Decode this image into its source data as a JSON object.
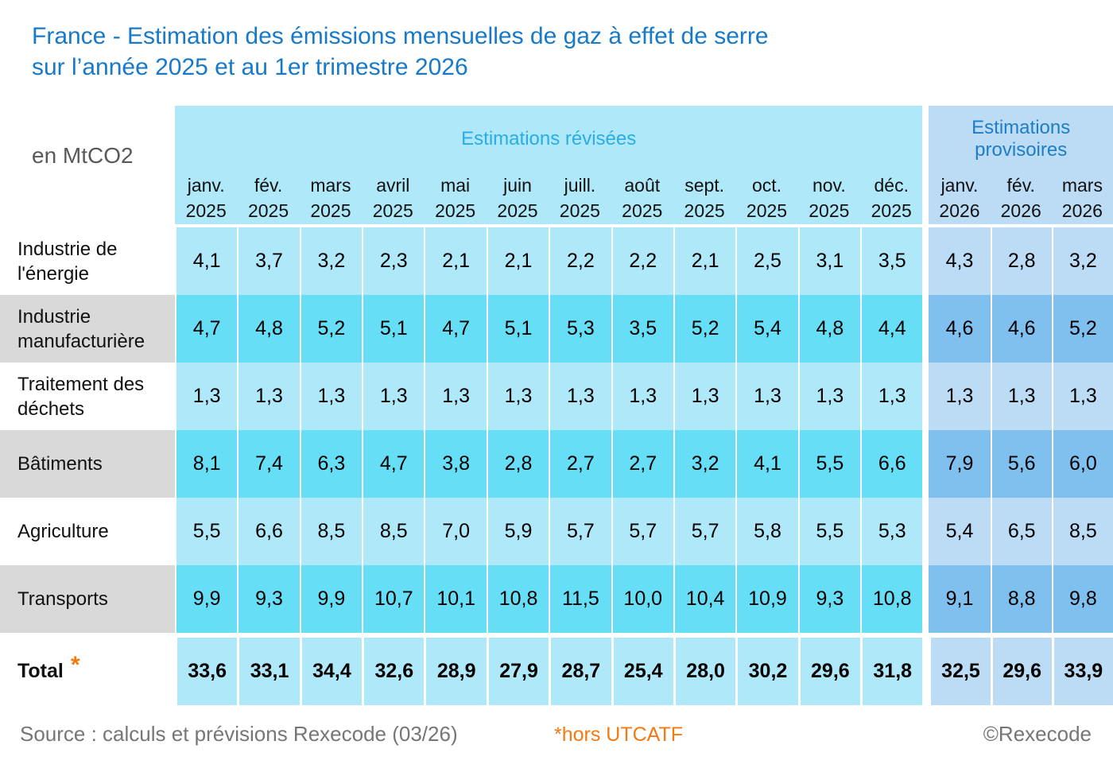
{
  "title": {
    "line1": "France - Estimation des émissions mensuelles de gaz à effet de serre",
    "line2": "sur l’année 2025 et au 1er trimestre 2026"
  },
  "unit_label": "en MtCO2",
  "header": {
    "revised_label": "Estimations révisées",
    "provisional_label": "Estimations provisoires",
    "revised_months": [
      "janv.",
      "fév.",
      "mars",
      "avril",
      "mai",
      "juin",
      "juill.",
      "août",
      "sept.",
      "oct.",
      "nov.",
      "déc."
    ],
    "revised_year": "2025",
    "provisional_months": [
      "janv.",
      "fév.",
      "mars"
    ],
    "provisional_year": "2026"
  },
  "rows": [
    {
      "label": "Industrie de\nl'énergie",
      "revised": [
        "4,1",
        "3,7",
        "3,2",
        "2,3",
        "2,1",
        "2,1",
        "2,2",
        "2,2",
        "2,1",
        "2,5",
        "3,1",
        "3,5"
      ],
      "provisional": [
        "4,3",
        "2,8",
        "3,2"
      ]
    },
    {
      "label": "Industrie\nmanufacturière",
      "revised": [
        "4,7",
        "4,8",
        "5,2",
        "5,1",
        "4,7",
        "5,1",
        "5,3",
        "3,5",
        "5,2",
        "5,4",
        "4,8",
        "4,4"
      ],
      "provisional": [
        "4,6",
        "4,6",
        "5,2"
      ]
    },
    {
      "label": "Traitement des\ndéchets",
      "revised": [
        "1,3",
        "1,3",
        "1,3",
        "1,3",
        "1,3",
        "1,3",
        "1,3",
        "1,3",
        "1,3",
        "1,3",
        "1,3",
        "1,3"
      ],
      "provisional": [
        "1,3",
        "1,3",
        "1,3"
      ]
    },
    {
      "label": "Bâtiments",
      "revised": [
        "8,1",
        "7,4",
        "6,3",
        "4,7",
        "3,8",
        "2,8",
        "2,7",
        "2,7",
        "3,2",
        "4,1",
        "5,5",
        "6,6"
      ],
      "provisional": [
        "7,9",
        "5,6",
        "6,0"
      ]
    },
    {
      "label": "Agriculture",
      "revised": [
        "5,5",
        "6,6",
        "8,5",
        "8,5",
        "7,0",
        "5,9",
        "5,7",
        "5,7",
        "5,7",
        "5,8",
        "5,5",
        "5,3"
      ],
      "provisional": [
        "5,4",
        "6,5",
        "8,5"
      ]
    },
    {
      "label": "Transports",
      "revised": [
        "9,9",
        "9,3",
        "9,9",
        "10,7",
        "10,1",
        "10,8",
        "11,5",
        "10,0",
        "10,4",
        "10,9",
        "9,3",
        "10,8"
      ],
      "provisional": [
        "9,1",
        "8,8",
        "9,8"
      ]
    }
  ],
  "total_row": {
    "label": "Total",
    "asterisk": "*",
    "revised": [
      "33,6",
      "33,1",
      "34,4",
      "32,6",
      "28,9",
      "27,9",
      "28,7",
      "25,4",
      "28,0",
      "30,2",
      "29,6",
      "31,8"
    ],
    "provisional": [
      "32,5",
      "29,6",
      "33,9"
    ]
  },
  "footer": {
    "source": "Source : calculs et prévisions Rexecode (03/26)",
    "note": "*hors UTCATF",
    "copyright": "©Rexecode"
  },
  "colors": {
    "title_blue": "#1779c7",
    "revised_label_cyan": "#29ade4",
    "provisional_label_blue": "#1d7ec5",
    "revised_light": "#aee8f9",
    "revised_dark": "#66def6",
    "provisional_light": "#bcdcf5",
    "provisional_dark": "#7fc0ee",
    "label_gray": "#d9d9d9",
    "accent_orange": "#f7780f",
    "footer_gray": "#767676"
  },
  "chart_data": {
    "type": "table",
    "title": "France - Estimation des émissions mensuelles de gaz à effet de serre sur l’année 2025 et au 1er trimestre 2026",
    "unit": "MtCO2",
    "column_groups": [
      {
        "label": "Estimations révisées",
        "columns": [
          "janv. 2025",
          "fév. 2025",
          "mars 2025",
          "avril 2025",
          "mai 2025",
          "juin 2025",
          "juill. 2025",
          "août 2025",
          "sept. 2025",
          "oct. 2025",
          "nov. 2025",
          "déc. 2025"
        ]
      },
      {
        "label": "Estimations provisoires",
        "columns": [
          "janv. 2026",
          "fév. 2026",
          "mars 2026"
        ]
      }
    ],
    "series": [
      {
        "name": "Industrie de l'énergie",
        "values": [
          4.1,
          3.7,
          3.2,
          2.3,
          2.1,
          2.1,
          2.2,
          2.2,
          2.1,
          2.5,
          3.1,
          3.5,
          4.3,
          2.8,
          3.2
        ]
      },
      {
        "name": "Industrie manufacturière",
        "values": [
          4.7,
          4.8,
          5.2,
          5.1,
          4.7,
          5.1,
          5.3,
          3.5,
          5.2,
          5.4,
          4.8,
          4.4,
          4.6,
          4.6,
          5.2
        ]
      },
      {
        "name": "Traitement des déchets",
        "values": [
          1.3,
          1.3,
          1.3,
          1.3,
          1.3,
          1.3,
          1.3,
          1.3,
          1.3,
          1.3,
          1.3,
          1.3,
          1.3,
          1.3,
          1.3
        ]
      },
      {
        "name": "Bâtiments",
        "values": [
          8.1,
          7.4,
          6.3,
          4.7,
          3.8,
          2.8,
          2.7,
          2.7,
          3.2,
          4.1,
          5.5,
          6.6,
          7.9,
          5.6,
          6.0
        ]
      },
      {
        "name": "Agriculture",
        "values": [
          5.5,
          6.6,
          8.5,
          8.5,
          7.0,
          5.9,
          5.7,
          5.7,
          5.7,
          5.8,
          5.5,
          5.3,
          5.4,
          6.5,
          8.5
        ]
      },
      {
        "name": "Transports",
        "values": [
          9.9,
          9.3,
          9.9,
          10.7,
          10.1,
          10.8,
          11.5,
          10.0,
          10.4,
          10.9,
          9.3,
          10.8,
          9.1,
          8.8,
          9.8
        ]
      },
      {
        "name": "Total (hors UTCATF)",
        "values": [
          33.6,
          33.1,
          34.4,
          32.6,
          28.9,
          27.9,
          28.7,
          25.4,
          28.0,
          30.2,
          29.6,
          31.8,
          32.5,
          29.6,
          33.9
        ]
      }
    ]
  }
}
